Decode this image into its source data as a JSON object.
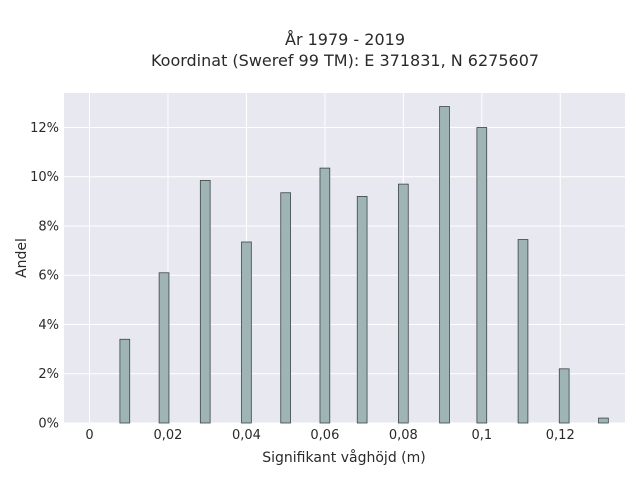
{
  "chart_data": {
    "type": "bar",
    "title_line1": "År 1979 - 2019",
    "title_line2": "Koordinat (Sweref 99 TM): E 371831, N 6275607",
    "xlabel": "Signifikant våghöjd (m)",
    "ylabel": "Andel",
    "x_ticks": [
      {
        "value": 0,
        "label": "0"
      },
      {
        "value": 0.02,
        "label": "0,02"
      },
      {
        "value": 0.04,
        "label": "0,04"
      },
      {
        "value": 0.06,
        "label": "0,06"
      },
      {
        "value": 0.08,
        "label": "0,08"
      },
      {
        "value": 0.1,
        "label": "0,1"
      },
      {
        "value": 0.12,
        "label": "0,12"
      }
    ],
    "y_ticks": [
      {
        "value": 0,
        "label": "0%"
      },
      {
        "value": 2,
        "label": "2%"
      },
      {
        "value": 4,
        "label": "4%"
      },
      {
        "value": 6,
        "label": "6%"
      },
      {
        "value": 8,
        "label": "8%"
      },
      {
        "value": 10,
        "label": "10%"
      },
      {
        "value": 12,
        "label": "12%"
      }
    ],
    "xlim": [
      -0.0065,
      0.1365
    ],
    "ylim": [
      0,
      13.4
    ],
    "bar_width": 0.0025,
    "x": [
      0.009,
      0.019,
      0.0295,
      0.04,
      0.05,
      0.06,
      0.0695,
      0.08,
      0.0905,
      0.1,
      0.1105,
      0.121,
      0.131
    ],
    "values": [
      3.4,
      6.1,
      9.85,
      7.35,
      9.35,
      10.35,
      9.2,
      9.7,
      12.85,
      12.0,
      7.45,
      2.2,
      0.2
    ],
    "grid": true,
    "colors": {
      "plot_bg": "#e8e8f0",
      "grid": "#ffffff",
      "bar_fill": "#9fb5b5",
      "bar_stroke": "#3b4545"
    }
  }
}
